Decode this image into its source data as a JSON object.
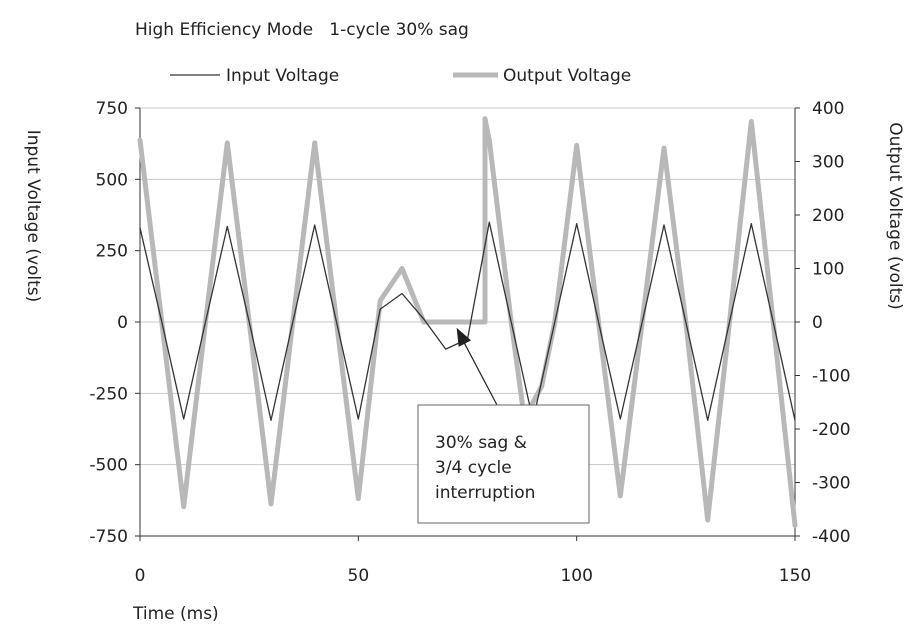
{
  "chart_data": {
    "type": "line",
    "title": "High Efficiency Mode   1-cycle 30% sag",
    "xlabel": "Time (ms)",
    "ylabel_left": "Input Voltage (volts)",
    "ylabel_right": "Output Voltage (volts)",
    "xlim": [
      0,
      150
    ],
    "ylim_left": [
      -750,
      750
    ],
    "ylim_right": [
      -400,
      400
    ],
    "x_ticks": [
      "0",
      "50",
      "100",
      "150"
    ],
    "y_ticks_left": [
      "750",
      "500",
      "250",
      "0",
      "-250",
      "-500",
      "-750"
    ],
    "y_ticks_right": [
      "400",
      "300",
      "200",
      "100",
      "0",
      "-100",
      "-200",
      "-300",
      "-400"
    ],
    "grid": "horizontal",
    "legend_position": "top",
    "series": [
      {
        "name": "Input Voltage",
        "axis": "left",
        "color": "#333333",
        "x": [
          0,
          5,
          10,
          15,
          20,
          25,
          30,
          35,
          40,
          45,
          50,
          55,
          60,
          65,
          70,
          75,
          80,
          85,
          90,
          95,
          100,
          105,
          110,
          115,
          120,
          125,
          130,
          135,
          140,
          145,
          150
        ],
        "y": [
          330,
          0,
          -340,
          0,
          335,
          0,
          -345,
          0,
          340,
          0,
          -340,
          45,
          100,
          10,
          -95,
          -60,
          350,
          0,
          -345,
          0,
          345,
          0,
          -340,
          0,
          340,
          0,
          -345,
          0,
          345,
          0,
          -345
        ]
      },
      {
        "name": "Output Voltage",
        "axis": "right",
        "color": "#b8b8b8",
        "x": [
          0,
          5,
          10,
          15,
          20,
          25,
          30,
          35,
          40,
          45,
          50,
          55,
          60,
          65,
          70,
          75,
          78,
          79,
          79,
          80,
          85,
          88,
          92,
          95,
          100,
          105,
          110,
          115,
          120,
          125,
          130,
          135,
          140,
          145,
          150
        ],
        "y": [
          340,
          0,
          -345,
          0,
          335,
          0,
          -340,
          0,
          335,
          0,
          -330,
          40,
          100,
          0,
          0,
          0,
          0,
          0,
          380,
          340,
          0,
          -180,
          -120,
          0,
          330,
          0,
          -325,
          0,
          325,
          0,
          -370,
          0,
          375,
          0,
          -380
        ]
      }
    ],
    "annotations": [
      {
        "lines": [
          "30% sag &",
          "3/4 cycle",
          "interruption"
        ],
        "arrow_to_x": 72.5,
        "arrow_to_y_left": -20
      }
    ]
  }
}
